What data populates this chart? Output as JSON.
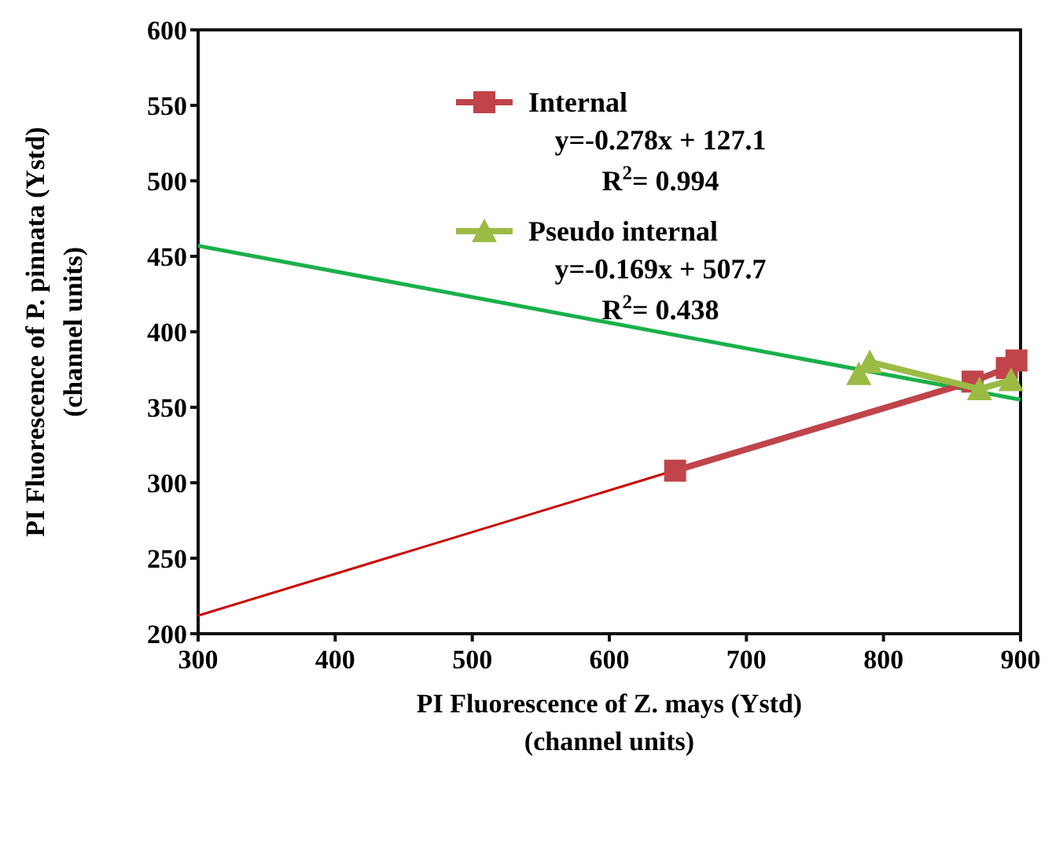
{
  "chart_data": {
    "type": "line",
    "xlabel": "PI Fluorescence of Z. mays (Ystd)\n(channel units)",
    "ylabel": "PI Fluorescence of P. pinnata (Ystd)\n(channel units)",
    "xlim": [
      300,
      900
    ],
    "ylim": [
      200,
      600
    ],
    "xticks": [
      300,
      400,
      500,
      600,
      700,
      800,
      900
    ],
    "yticks": [
      200,
      250,
      300,
      350,
      400,
      450,
      500,
      550,
      600
    ],
    "grid": false,
    "legend": "top",
    "annotations": [
      "y=-0.278x + 127.1",
      "R$^{2}$= 0.994",
      "y=-0.169x + 507.7",
      "R$^{2}$= 0.438"
    ],
    "series": [
      {
        "color": "#cc0000",
        "x": [
          300,
          900
        ],
        "values": [
          212,
          378
        ],
        "marker": "none"
      },
      {
        "color": "#1bb04a",
        "x": [
          300,
          900
        ],
        "values": [
          457,
          355
        ],
        "marker": "none"
      },
      {
        "name": "Internal",
        "color": "#c0444a",
        "x": [
          648,
          865,
          890,
          897
        ],
        "values": [
          308,
          367,
          376,
          381
        ],
        "marker": "square"
      },
      {
        "name": "Pseudo internal",
        "color": "#9bbb45",
        "x": [
          782,
          790,
          870,
          893
        ],
        "values": [
          372,
          380,
          362,
          368
        ],
        "marker": "triangle"
      }
    ]
  }
}
